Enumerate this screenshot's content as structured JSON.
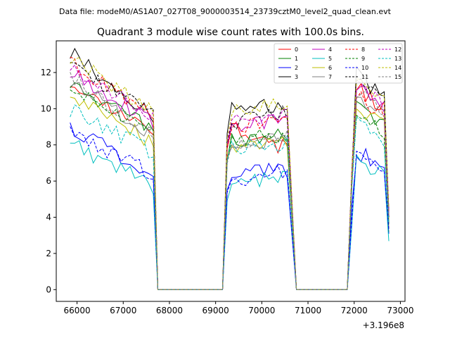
{
  "header": {
    "datafile": "Data file: modeM0/AS1A07_027T08_9000003514_23739cztM0_level2_quad_clean.evt",
    "title": "Quadrant 3 module wise count rates with 100.0s bins."
  },
  "chart_data": {
    "type": "line",
    "title": "Quadrant 3 module wise count rates with 100.0s bins.",
    "xlabel": "",
    "ylabel": "",
    "x_offset_label": "+3.196e8",
    "xlim": [
      65550,
      73100
    ],
    "ylim": [
      -0.65,
      13.75
    ],
    "xticks": [
      66000,
      67000,
      68000,
      69000,
      70000,
      71000,
      72000,
      73000
    ],
    "xtick_labels": [
      "66000",
      "67000",
      "68000",
      "69000",
      "70000",
      "71000",
      "72000",
      "73000"
    ],
    "yticks": [
      0,
      2,
      4,
      6,
      8,
      10,
      12
    ],
    "ytick_labels": [
      "0",
      "2",
      "4",
      "6",
      "8",
      "10",
      "12"
    ],
    "grid": false,
    "legend_position": "top-right",
    "segments": [
      {
        "start": 65850,
        "end": 67600
      },
      {
        "start": 69250,
        "end": 70550
      },
      {
        "start": 71950,
        "end": 72750
      }
    ],
    "gap_levels": [
      67750,
      69150,
      70750,
      71850
    ],
    "series": [
      {
        "name": "0",
        "color": "#ff0000",
        "dash": "solid",
        "levels": [
          11.0,
          9.0,
          9.1,
          7.8,
          11.5,
          3.5
        ]
      },
      {
        "name": "1",
        "color": "#008000",
        "dash": "solid",
        "levels": [
          11.2,
          9.0,
          8.3,
          8.5,
          10.5,
          3.5
        ]
      },
      {
        "name": "2",
        "color": "#0000ff",
        "dash": "solid",
        "levels": [
          9.0,
          6.3,
          6.5,
          6.6,
          7.8,
          3.4
        ]
      },
      {
        "name": "3",
        "color": "#000000",
        "dash": "solid",
        "levels": [
          13.2,
          9.5,
          10.0,
          10.1,
          12.2,
          4.2
        ]
      },
      {
        "name": "4",
        "color": "#bf00bf",
        "dash": "solid",
        "levels": [
          12.1,
          9.2,
          9.0,
          9.4,
          11.5,
          4.0
        ]
      },
      {
        "name": "5",
        "color": "#00bfbf",
        "dash": "solid",
        "levels": [
          8.1,
          5.7,
          5.8,
          6.4,
          7.3,
          3.0
        ]
      },
      {
        "name": "6",
        "color": "#bfbf00",
        "dash": "solid",
        "levels": [
          10.9,
          8.1,
          8.0,
          8.2,
          10.4,
          3.7
        ]
      },
      {
        "name": "7",
        "color": "#808080",
        "dash": "solid",
        "levels": [
          11.5,
          8.6,
          8.0,
          8.3,
          11.0,
          3.8
        ]
      },
      {
        "name": "8",
        "color": "#ff0000",
        "dash": "dashed",
        "levels": [
          12.5,
          9.6,
          9.0,
          9.1,
          11.0,
          3.9
        ]
      },
      {
        "name": "9",
        "color": "#008000",
        "dash": "dashed",
        "levels": [
          11.0,
          8.9,
          8.2,
          8.6,
          10.0,
          3.6
        ]
      },
      {
        "name": "10",
        "color": "#0000ff",
        "dash": "dashed",
        "levels": [
          8.7,
          6.4,
          6.0,
          6.6,
          7.9,
          3.2
        ]
      },
      {
        "name": "11",
        "color": "#000000",
        "dash": "dashed",
        "levels": [
          12.5,
          9.6,
          9.2,
          9.8,
          12.0,
          4.1
        ]
      },
      {
        "name": "12",
        "color": "#bf00bf",
        "dash": "dashed",
        "levels": [
          12.1,
          9.6,
          9.2,
          9.7,
          11.6,
          4.0
        ]
      },
      {
        "name": "13",
        "color": "#00bfbf",
        "dash": "dashed",
        "levels": [
          9.9,
          7.6,
          7.8,
          8.1,
          9.6,
          3.5
        ]
      },
      {
        "name": "14",
        "color": "#bfbf00",
        "dash": "dashed",
        "levels": [
          12.8,
          9.8,
          9.7,
          10.4,
          12.2,
          4.2
        ]
      },
      {
        "name": "15",
        "color": "#808080",
        "dash": "dashed",
        "levels": [
          11.7,
          8.4,
          8.0,
          8.6,
          11.2,
          3.8
        ]
      }
    ]
  }
}
